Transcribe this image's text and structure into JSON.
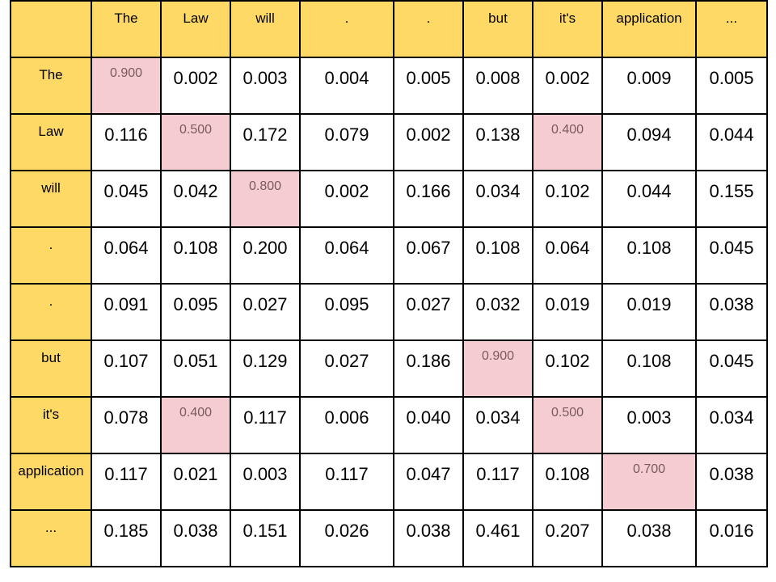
{
  "chart_data": {
    "type": "heatmap",
    "title": "",
    "column_tokens": [
      "The",
      "Law",
      "will",
      ".",
      ".",
      "but",
      "it's",
      "application",
      "..."
    ],
    "row_tokens": [
      "The",
      "Law",
      "will",
      ".",
      ".",
      "but",
      "it's",
      "application",
      "..."
    ],
    "values": [
      [
        "0.900",
        "0.002",
        "0.003",
        "0.004",
        "0.005",
        "0.008",
        "0.002",
        "0.009",
        "0.005"
      ],
      [
        "0.116",
        "0.500",
        "0.172",
        "0.079",
        "0.002",
        "0.138",
        "0.400",
        "0.094",
        "0.044"
      ],
      [
        "0.045",
        "0.042",
        "0.800",
        "0.002",
        "0.166",
        "0.034",
        "0.102",
        "0.044",
        "0.155"
      ],
      [
        "0.064",
        "0.108",
        "0.200",
        "0.064",
        "0.067",
        "0.108",
        "0.064",
        "0.108",
        "0.045"
      ],
      [
        "0.091",
        "0.095",
        "0.027",
        "0.095",
        "0.027",
        "0.032",
        "0.019",
        "0.019",
        "0.038"
      ],
      [
        "0.107",
        "0.051",
        "0.129",
        "0.027",
        "0.186",
        "0.900",
        "0.102",
        "0.108",
        "0.045"
      ],
      [
        "0.078",
        "0.400",
        "0.117",
        "0.006",
        "0.040",
        "0.034",
        "0.500",
        "0.003",
        "0.034"
      ],
      [
        "0.117",
        "0.021",
        "0.003",
        "0.117",
        "0.047",
        "0.117",
        "0.108",
        "0.700",
        "0.038"
      ],
      [
        "0.185",
        "0.038",
        "0.151",
        "0.026",
        "0.038",
        "0.461",
        "0.207",
        "0.038",
        "0.016"
      ]
    ],
    "highlighted_cells": [
      [
        0,
        0
      ],
      [
        1,
        1
      ],
      [
        1,
        6
      ],
      [
        2,
        2
      ],
      [
        5,
        5
      ],
      [
        6,
        1
      ],
      [
        6,
        6
      ],
      [
        7,
        7
      ]
    ],
    "colors": {
      "header_fill": "#ffd966",
      "highlight_fill": "#f4ccd2",
      "cell_fill": "#ffffff",
      "border": "#000000"
    }
  }
}
